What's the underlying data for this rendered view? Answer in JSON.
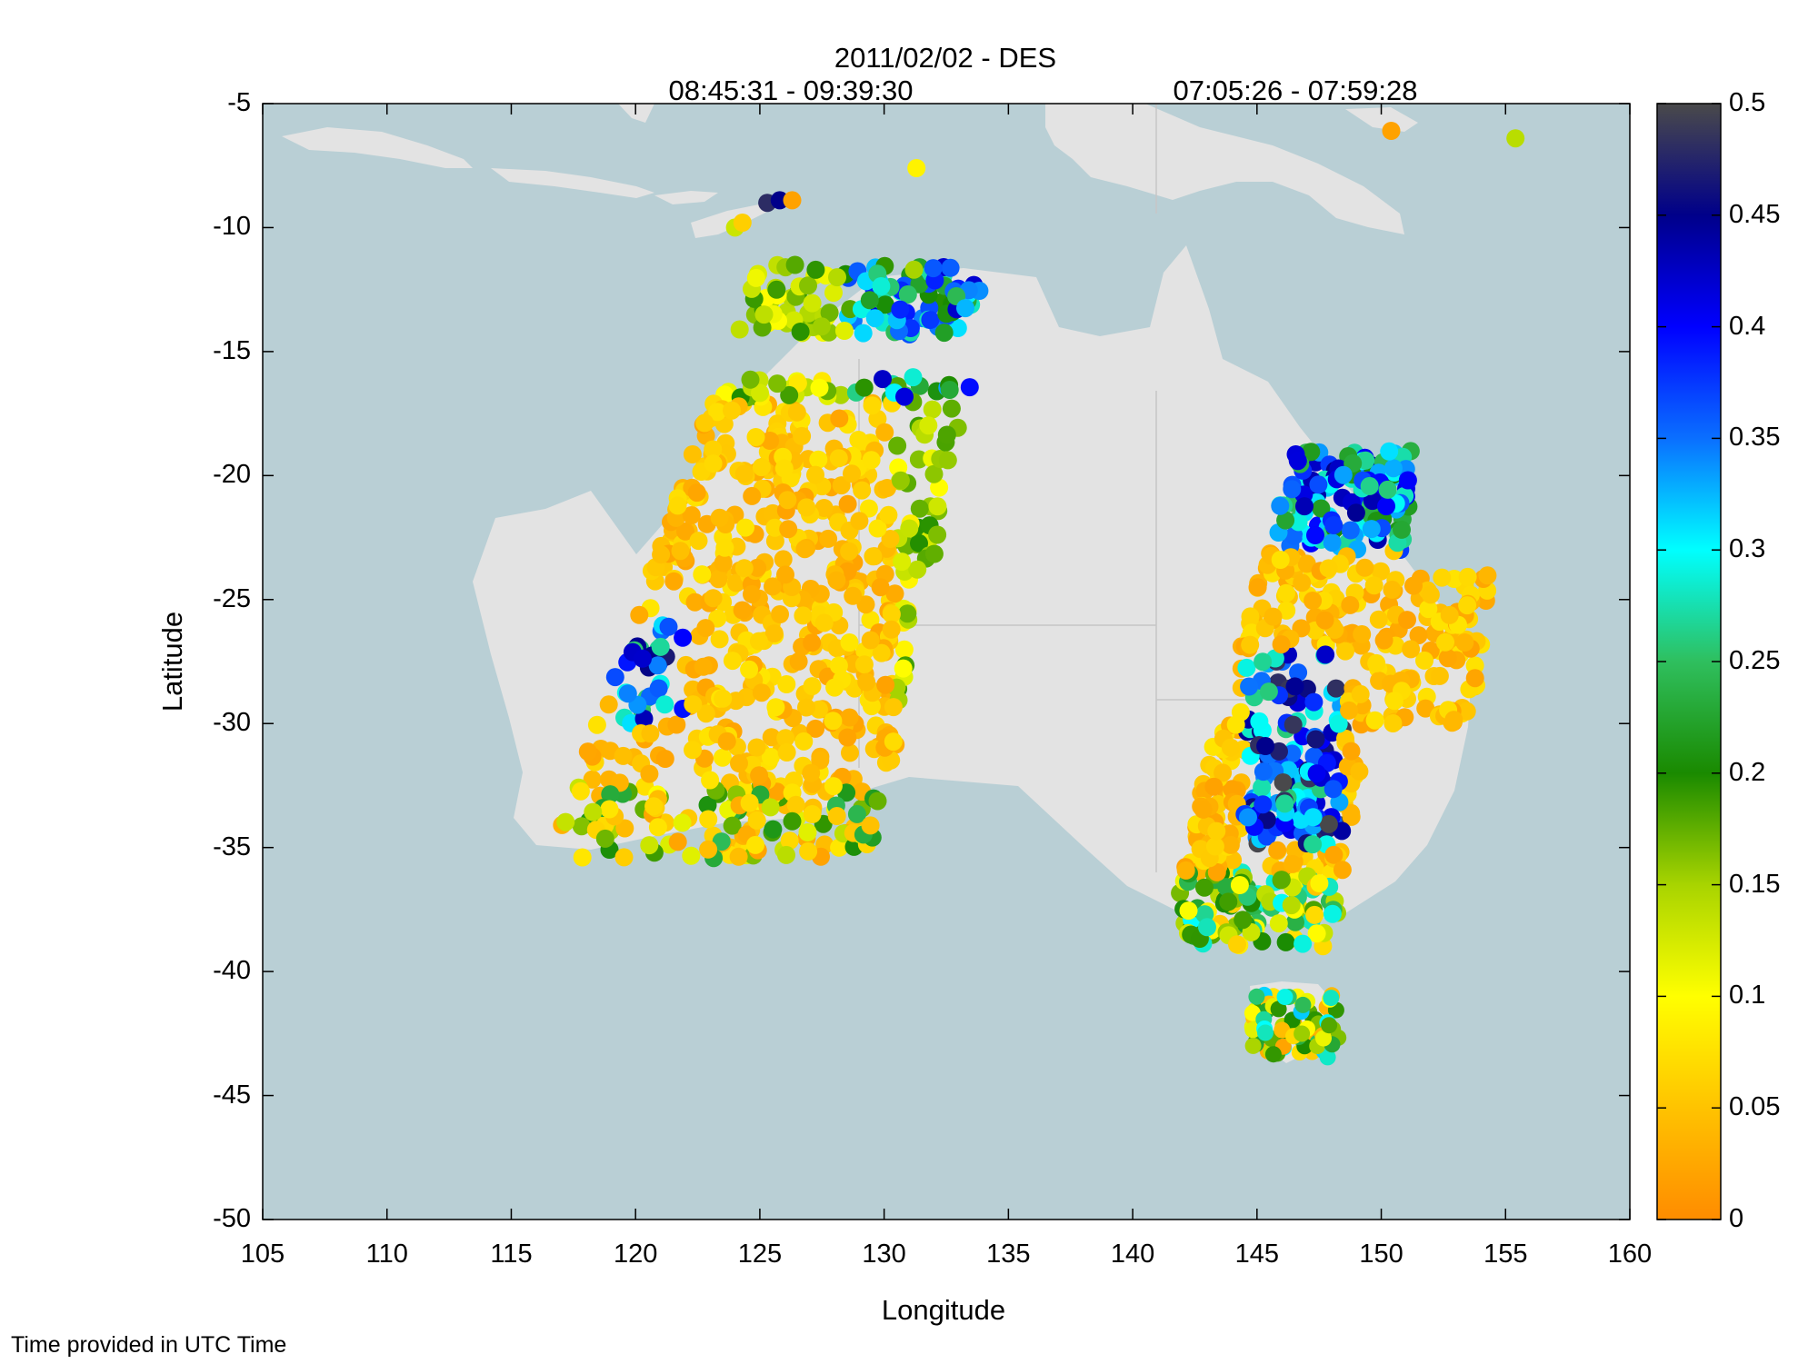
{
  "title": {
    "date_mode": "2011/02/02 - DES",
    "time_range_left": "08:45:31 - 09:39:30",
    "time_range_right": "07:05:26 - 07:59:28"
  },
  "axes": {
    "xlabel": "Longitude",
    "ylabel": "Latitude",
    "xticks": [
      "105",
      "110",
      "115",
      "120",
      "125",
      "130",
      "135",
      "140",
      "145",
      "150",
      "155",
      "160"
    ],
    "yticks": [
      "-5",
      "-10",
      "-15",
      "-20",
      "-25",
      "-30",
      "-35",
      "-40",
      "-45",
      "-50"
    ],
    "xlim": [
      105,
      160
    ],
    "ylim": [
      -50,
      -5
    ]
  },
  "colorbar": {
    "ticks": [
      "0",
      "0.05",
      "0.1",
      "0.15",
      "0.2",
      "0.25",
      "0.3",
      "0.35",
      "0.4",
      "0.45",
      "0.5"
    ],
    "range": [
      0,
      0.5
    ],
    "colors": [
      "#ff8c00",
      "#ffc300",
      "#ffff00",
      "#a8d400",
      "#1a8a00",
      "#2fbf5e",
      "#00ffff",
      "#0a6fff",
      "#0000ff",
      "#00008a",
      "#4a4a4a"
    ]
  },
  "colors": {
    "ocean": "#b9cfd5",
    "land": "#e3e3e3",
    "frame": "#000000"
  },
  "footnote": "Time provided in UTC Time",
  "chart_data": {
    "type": "scatter",
    "description_note": "",
    "swaths": [
      {
        "name": "",
        "lon_range": [
          116,
          134.5
        ],
        "lat_range": [
          -35.5,
          -11.5
        ]
      },
      {
        "name": "",
        "lon_range": [
          141,
          153.5
        ],
        "lat_range": [
          -43.5,
          -19
        ]
      }
    ],
    "value_range": [
      0,
      0.5
    ]
  }
}
